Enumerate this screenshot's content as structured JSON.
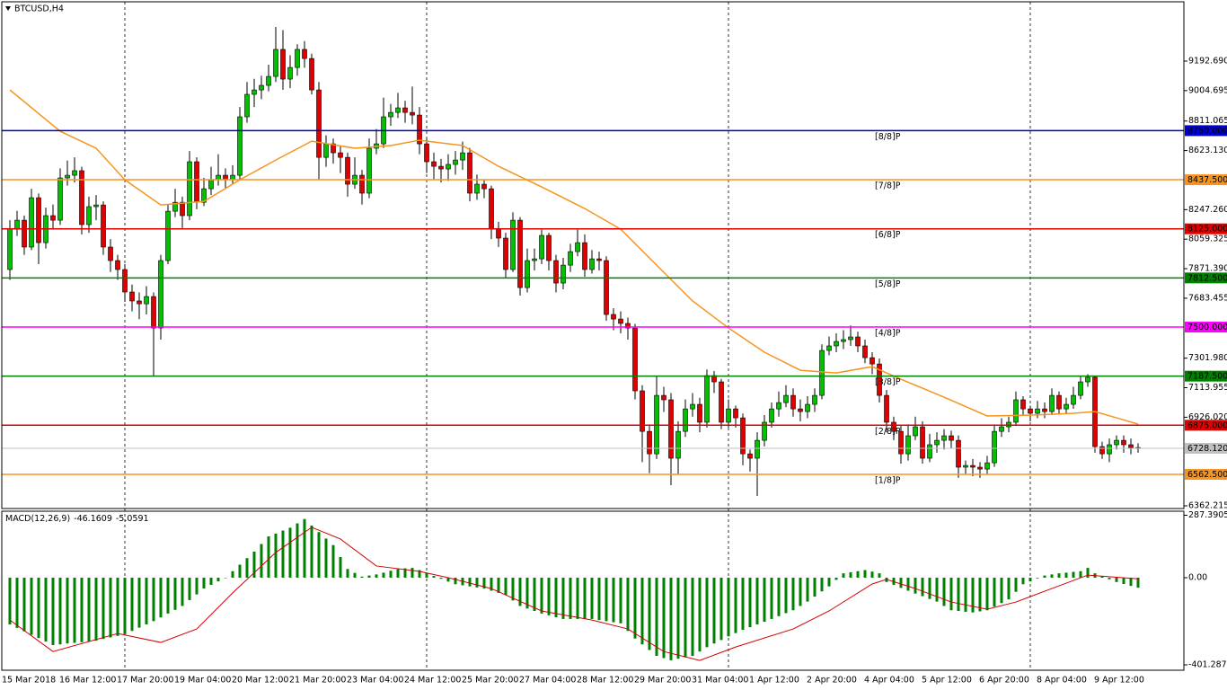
{
  "chart_data": [
    {
      "type": "candlestick",
      "title": "BTCUSD,H4",
      "categories": [
        "15 Mar 2018",
        null,
        null,
        null,
        null,
        null,
        null,
        null,
        "16 Mar 12:00",
        null,
        null,
        null,
        null,
        null,
        null,
        null,
        "17 Mar 20:00",
        null,
        null,
        null,
        null,
        null,
        null,
        null,
        "19 Mar 04:00",
        null,
        null,
        null,
        null,
        null,
        null,
        null,
        "20 Mar 12:00",
        null,
        null,
        null,
        null,
        null,
        null,
        null,
        "21 Mar 20:00",
        null,
        null,
        null,
        null,
        null,
        null,
        null,
        "23 Mar 04:00",
        null,
        null,
        null,
        null,
        null,
        null,
        null,
        "24 Mar 12:00",
        null,
        null,
        null,
        null,
        null,
        null,
        null,
        "25 Mar 20:00",
        null,
        null,
        null,
        null,
        null,
        null,
        null,
        "27 Mar 04:00",
        null,
        null,
        null,
        null,
        null,
        null,
        null,
        "28 Mar 12:00",
        null,
        null,
        null,
        null,
        null,
        null,
        null,
        "29 Mar 20:00",
        null,
        null,
        null,
        null,
        null,
        null,
        null,
        "31 Mar 04:00",
        null,
        null,
        null,
        null,
        null,
        null,
        null,
        "1 Apr 12:00",
        null,
        null,
        null,
        null,
        null,
        null,
        null,
        "2 Apr 20:00",
        null,
        null,
        null,
        null,
        null,
        null,
        null,
        "4 Apr 04:00",
        null,
        null,
        null,
        null,
        null,
        null,
        null,
        "5 Apr 12:00",
        null,
        null,
        null,
        null,
        null,
        null,
        null,
        "6 Apr 20:00",
        null,
        null,
        null,
        null,
        null,
        null,
        null,
        "8 Apr 04:00",
        null,
        null,
        null,
        null,
        null,
        null,
        null,
        "9 Apr 12:00",
        null,
        null,
        null,
        null,
        null
      ],
      "open": [
        7866,
        8123,
        8180,
        8009,
        8323,
        8037,
        8209,
        8180,
        8449,
        8466,
        8495,
        8152,
        8266,
        8277,
        8009,
        7923,
        7866,
        7723,
        7666,
        7648,
        7694,
        7494,
        7923,
        8237,
        8294,
        8209,
        8552,
        8294,
        8380,
        8437,
        8466,
        8437,
        8466,
        8838,
        8981,
        9009,
        9038,
        9095,
        9267,
        9078,
        9152,
        9267,
        9209,
        9009,
        8580,
        8666,
        8609,
        8580,
        8409,
        8466,
        8352,
        8638,
        8666,
        8838,
        8866,
        8895,
        8866,
        8849,
        8666,
        8552,
        8523,
        8506,
        8535,
        8563,
        8609,
        8352,
        8409,
        8380,
        8123,
        8066,
        7866,
        8180,
        7751,
        7923,
        7934,
        8083,
        7923,
        7780,
        7894,
        7980,
        8037,
        7866,
        7934,
        7923,
        7580,
        7551,
        7523,
        7494,
        7094,
        6836,
        6693,
        7065,
        7037,
        6665,
        6836,
        6979,
        7008,
        6894,
        7191,
        7151,
        6894,
        6979,
        6922,
        6693,
        6665,
        6779,
        6894,
        6979,
        7019,
        7065,
        6979,
        6962,
        7008,
        7065,
        7351,
        7380,
        7408,
        7420,
        7437,
        7380,
        7305,
        7265,
        7065,
        6894,
        6836,
        6693,
        6808,
        6865,
        6665,
        6751,
        6779,
        6808,
        6779,
        6608,
        6619,
        6608,
        6596,
        6636,
        6836,
        6865,
        6894,
        7037,
        6979,
        6951,
        6979,
        6962,
        7065,
        6979,
        7008,
        7065,
        7151,
        7180,
        6739,
        6693,
        6751,
        6779,
        6751,
        6733
      ],
      "high": [
        8180,
        8240,
        8210,
        8380,
        8350,
        8260,
        8280,
        8510,
        8560,
        8580,
        8520,
        8330,
        8340,
        8300,
        8060,
        7960,
        7900,
        7770,
        7720,
        7760,
        7720,
        7960,
        8280,
        8380,
        8330,
        8620,
        8580,
        8450,
        8520,
        8600,
        8510,
        8530,
        8900,
        9060,
        9080,
        9100,
        9170,
        9410,
        9390,
        9230,
        9300,
        9320,
        9240,
        9060,
        8720,
        8700,
        8650,
        8610,
        8580,
        8500,
        8700,
        8760,
        8960,
        8920,
        8990,
        8940,
        9030,
        8900,
        8700,
        8610,
        8570,
        8600,
        8620,
        8680,
        8640,
        8470,
        8440,
        8400,
        8170,
        8100,
        8230,
        8200,
        8000,
        8000,
        8120,
        8100,
        7960,
        7940,
        8030,
        8120,
        8090,
        7990,
        7980,
        7950,
        7620,
        7600,
        7560,
        7520,
        7130,
        6880,
        7190,
        7120,
        7080,
        6900,
        7040,
        7080,
        7050,
        7230,
        7220,
        7170,
        7040,
        7000,
        6950,
        6720,
        6830,
        6940,
        7020,
        7090,
        7130,
        7110,
        7040,
        7060,
        7110,
        7390,
        7440,
        7460,
        7480,
        7510,
        7470,
        7420,
        7340,
        7300,
        7100,
        6930,
        6870,
        6880,
        6930,
        6900,
        6820,
        6830,
        6850,
        6840,
        6810,
        6650,
        6660,
        6640,
        6680,
        6880,
        6920,
        6930,
        7090,
        7060,
        7000,
        7030,
        7020,
        7110,
        7090,
        7050,
        7120,
        7190,
        7200,
        7190,
        6770,
        6790,
        6810,
        6810,
        6790,
        6760
      ],
      "low": [
        7800,
        8080,
        7960,
        7990,
        7900,
        8000,
        8120,
        8150,
        8400,
        8420,
        8090,
        8100,
        8180,
        7960,
        7850,
        7800,
        7660,
        7600,
        7550,
        7580,
        7191,
        7420,
        7900,
        8200,
        8130,
        8180,
        8250,
        8270,
        8340,
        8400,
        8380,
        8410,
        8440,
        8800,
        8900,
        8950,
        9000,
        9060,
        9010,
        9020,
        9100,
        9150,
        8980,
        8440,
        8520,
        8540,
        8480,
        8330,
        8380,
        8280,
        8320,
        8600,
        8640,
        8780,
        8830,
        8800,
        8790,
        8600,
        8480,
        8440,
        8420,
        8430,
        8470,
        8500,
        8300,
        8310,
        8320,
        8060,
        8010,
        7810,
        7850,
        7700,
        7720,
        7860,
        7900,
        7860,
        7720,
        7740,
        7850,
        7950,
        7820,
        7840,
        7860,
        7540,
        7480,
        7460,
        7420,
        7040,
        6640,
        6570,
        6660,
        6960,
        6493,
        6560,
        6800,
        6930,
        6830,
        6860,
        7080,
        6850,
        6860,
        6860,
        6620,
        6580,
        6425,
        6740,
        6860,
        6930,
        6990,
        6930,
        6900,
        6920,
        6960,
        7040,
        7320,
        7340,
        7360,
        7380,
        7340,
        7270,
        7200,
        7020,
        6830,
        6780,
        6630,
        6650,
        6780,
        6630,
        6640,
        6700,
        6720,
        6730,
        6540,
        6560,
        6550,
        6540,
        6560,
        6610,
        6800,
        6830,
        6870,
        6940,
        6900,
        6920,
        6920,
        6940,
        6950,
        6950,
        6980,
        7040,
        7120,
        6700,
        6660,
        6640,
        6720,
        6700,
        6690,
        6700
      ],
      "close": [
        8123,
        8180,
        8009,
        8323,
        8037,
        8209,
        8180,
        8449,
        8466,
        8495,
        8152,
        8266,
        8277,
        8009,
        7923,
        7866,
        7723,
        7666,
        7648,
        7694,
        7494,
        7923,
        8237,
        8294,
        8209,
        8552,
        8294,
        8380,
        8437,
        8466,
        8437,
        8466,
        8838,
        8981,
        9009,
        9038,
        9095,
        9267,
        9078,
        9152,
        9267,
        9209,
        9009,
        8580,
        8666,
        8609,
        8580,
        8409,
        8466,
        8352,
        8638,
        8666,
        8838,
        8866,
        8895,
        8866,
        8849,
        8666,
        8552,
        8523,
        8506,
        8535,
        8563,
        8609,
        8352,
        8409,
        8380,
        8123,
        8066,
        7866,
        8180,
        7751,
        7923,
        7934,
        8083,
        7923,
        7780,
        7894,
        7980,
        8037,
        7866,
        7934,
        7923,
        7580,
        7551,
        7523,
        7494,
        7094,
        6836,
        6693,
        7065,
        7037,
        6665,
        6836,
        6979,
        7008,
        6894,
        7191,
        7151,
        6894,
        6979,
        6922,
        6693,
        6665,
        6779,
        6894,
        6979,
        7019,
        7065,
        6979,
        6962,
        7008,
        7065,
        7351,
        7380,
        7408,
        7420,
        7437,
        7380,
        7305,
        7265,
        7065,
        6894,
        6836,
        6693,
        6808,
        6865,
        6665,
        6751,
        6779,
        6808,
        6779,
        6608,
        6619,
        6608,
        6596,
        6636,
        6836,
        6865,
        6894,
        7037,
        6979,
        6951,
        6979,
        6962,
        7065,
        6979,
        7008,
        7065,
        7151,
        7180,
        6739,
        6693,
        6751,
        6779,
        6751,
        6733,
        6728.12
      ],
      "up_color": "#00c000",
      "down_color": "#e00000",
      "ma": {
        "color": "#f7941d",
        "x": [
          0,
          7,
          12,
          16,
          21,
          27,
          32,
          37,
          42,
          48,
          53,
          57,
          63,
          68,
          74,
          80,
          85,
          90,
          95,
          100,
          105,
          110,
          115,
          120,
          124,
          130,
          136,
          142,
          148,
          151,
          154,
          157
        ],
        "values": [
          9009,
          8746,
          8638,
          8437,
          8277,
          8300,
          8437,
          8563,
          8683,
          8638,
          8655,
          8689,
          8655,
          8523,
          8392,
          8254,
          8123,
          7894,
          7666,
          7494,
          7340,
          7225,
          7208,
          7248,
          7168,
          7054,
          6934,
          6939,
          6951,
          6962,
          6922,
          6882
        ]
      },
      "current_price": {
        "value": 6728.12,
        "label": "6728.120",
        "color": "#c0c0c0"
      },
      "levels": [
        {
          "value": 8750,
          "label": "8750.000",
          "name": "[8/8]P",
          "color": "#0000d0"
        },
        {
          "value": 8437.5,
          "label": "8437.500",
          "name": "[7/8]P",
          "color": "#f7941d"
        },
        {
          "value": 8125,
          "label": "8125.000",
          "name": "[6/8]P",
          "color": "#e00000"
        },
        {
          "value": 7812.5,
          "label": "7812.500",
          "name": "[5/8]P",
          "color": "#008000"
        },
        {
          "value": 7500,
          "label": "7500.000",
          "name": "[4/8]P",
          "color": "#ff00ff"
        },
        {
          "value": 7187.5,
          "label": "7187.500",
          "name": "[3/8]P",
          "color": "#008000"
        },
        {
          "value": 6875,
          "label": "6875.000",
          "name": "[2/8]P",
          "color": "#e00000"
        },
        {
          "value": 6562.5,
          "label": "6562.500",
          "name": "[1/8]P",
          "color": "#f7941d"
        }
      ],
      "ylim": [
        6345,
        9570
      ],
      "yticks": [
        {
          "value": 9192.69,
          "label": "9192.690"
        },
        {
          "value": 9004.695,
          "label": "9004.695"
        },
        {
          "value": 8811.065,
          "label": "8811.065"
        },
        {
          "value": 8623.13,
          "label": "8623.130"
        },
        {
          "value": 8247.26,
          "label": "8247.260"
        },
        {
          "value": 8059.325,
          "label": "8059.325"
        },
        {
          "value": 7871.39,
          "label": "7871.390"
        },
        {
          "value": 7683.455,
          "label": "7683.455"
        },
        {
          "value": 7301.98,
          "label": "7301.980"
        },
        {
          "value": 7113.955,
          "label": "7113.955"
        },
        {
          "value": 6926.02,
          "label": "6926.020"
        },
        6362.215
      ]
    },
    {
      "type": "bar",
      "title": "MACD(12,26,9)",
      "color": "#008000",
      "values": [
        -215,
        -231,
        -247,
        -263,
        -278,
        -294,
        -310,
        -307,
        -303,
        -300,
        -297,
        -293,
        -290,
        -282,
        -275,
        -268,
        -260,
        -245,
        -230,
        -215,
        -200,
        -183,
        -165,
        -148,
        -130,
        -103,
        -77,
        -50,
        -33,
        -17,
        0,
        30,
        60,
        90,
        120,
        155,
        190,
        203,
        217,
        230,
        250,
        270,
        240,
        210,
        180,
        150,
        95,
        40,
        22,
        5,
        10,
        15,
        23,
        32,
        40,
        43,
        45,
        35,
        22,
        8,
        -5,
        -18,
        -30,
        -35,
        -40,
        -45,
        -50,
        -60,
        -70,
        -80,
        -105,
        -130,
        -142,
        -153,
        -165,
        -173,
        -182,
        -190,
        -190,
        -190,
        -190,
        -190,
        -195,
        -200,
        -205,
        -210,
        -245,
        -280,
        -307,
        -333,
        -360,
        -370,
        -380,
        -373,
        -367,
        -360,
        -340,
        -320,
        -303,
        -287,
        -270,
        -255,
        -240,
        -228,
        -215,
        -203,
        -190,
        -177,
        -163,
        -150,
        -130,
        -110,
        -87,
        -63,
        -40,
        -10,
        20,
        25,
        30,
        35,
        28,
        20,
        -20,
        -33,
        -47,
        -60,
        -73,
        -85,
        -98,
        -110,
        -130,
        -150,
        -153,
        -157,
        -160,
        -155,
        -150,
        -133,
        -117,
        -100,
        -65,
        -30,
        -17,
        -3,
        10,
        15,
        20,
        23,
        27,
        30,
        45,
        20,
        7,
        -7,
        -20,
        -29,
        -38,
        -46.1609
      ],
      "signal": {
        "color": "#d00000",
        "x": [
          0,
          6,
          15,
          21,
          26,
          31,
          37,
          42,
          46,
          51,
          57,
          61,
          67,
          74,
          81,
          86,
          91,
          96,
          101,
          109,
          114,
          120,
          122,
          126,
          131,
          136,
          140,
          145,
          150,
          157
        ],
        "values": [
          -195,
          -340,
          -257,
          -298,
          -236,
          -70,
          116,
          232,
          178,
          54,
          29,
          0,
          -50,
          -153,
          -195,
          -236,
          -340,
          -381,
          -319,
          -236,
          -153,
          -29,
          -8,
          -50,
          -112,
          -145,
          -112,
          -50,
          12,
          -5.0591
        ]
      },
      "ylim": [
        -426,
        306
      ],
      "yticks": [
        {
          "value": 287.3905,
          "label": "287.3905"
        },
        {
          "value": 0,
          "label": "0.00"
        },
        -401.2871
      ]
    }
  ]
}
